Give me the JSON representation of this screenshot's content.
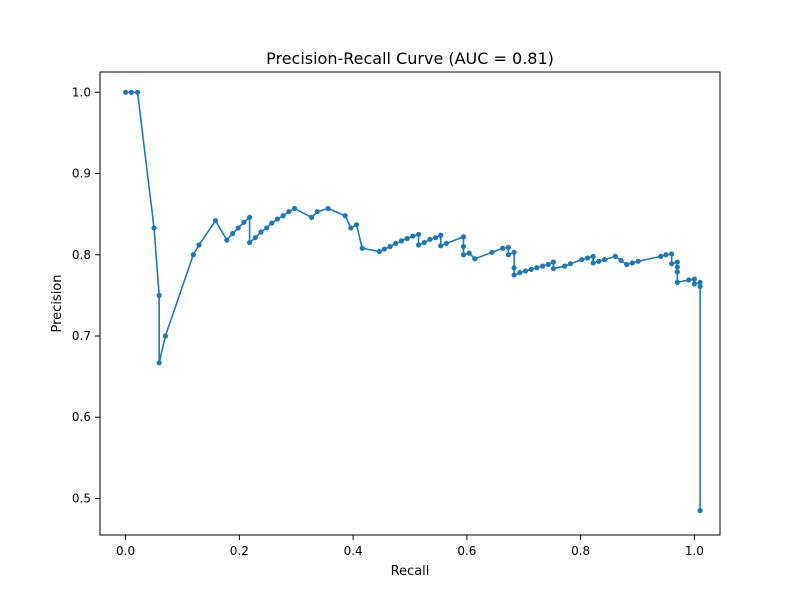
{
  "chart_data": {
    "type": "line",
    "title": "Precision-Recall Curve (AUC = 0.81)",
    "xlabel": "Recall",
    "ylabel": "Precision",
    "xlim": [
      -0.045,
      1.045
    ],
    "ylim": [
      0.455,
      1.025
    ],
    "x_ticks": [
      0.0,
      0.2,
      0.4,
      0.6,
      0.8,
      1.0
    ],
    "x_tick_labels": [
      "0.0",
      "0.2",
      "0.4",
      "0.6",
      "0.8",
      "1.0"
    ],
    "y_ticks": [
      0.5,
      0.6,
      0.7,
      0.8,
      0.9,
      1.0
    ],
    "y_tick_labels": [
      "0.5",
      "0.6",
      "0.7",
      "0.8",
      "0.9",
      "1.0"
    ],
    "grid": false,
    "line_color": "#1f77b4",
    "marker": "circle",
    "series": [
      {
        "x": [
          0.0,
          0.01,
          0.021,
          0.05,
          0.059,
          0.059,
          0.07,
          0.119,
          0.129,
          0.158,
          0.178,
          0.188,
          0.198,
          0.208,
          0.218,
          0.218,
          0.228,
          0.238,
          0.248,
          0.257,
          0.267,
          0.277,
          0.287,
          0.297,
          0.327,
          0.337,
          0.356,
          0.386,
          0.396,
          0.406,
          0.416,
          0.446,
          0.455,
          0.465,
          0.475,
          0.485,
          0.495,
          0.505,
          0.515,
          0.515,
          0.525,
          0.535,
          0.545,
          0.554,
          0.554,
          0.564,
          0.594,
          0.594,
          0.594,
          0.604,
          0.614,
          0.644,
          0.663,
          0.673,
          0.673,
          0.683,
          0.683,
          0.683,
          0.693,
          0.703,
          0.713,
          0.723,
          0.733,
          0.743,
          0.752,
          0.752,
          0.772,
          0.782,
          0.802,
          0.812,
          0.822,
          0.822,
          0.832,
          0.842,
          0.861,
          0.871,
          0.881,
          0.891,
          0.901,
          0.941,
          0.95,
          0.96,
          0.96,
          0.97,
          0.97,
          0.97,
          0.97,
          0.99,
          1.0,
          1.0,
          1.01,
          1.01,
          1.01
        ],
        "y": [
          1.0,
          1.0,
          1.0,
          0.833,
          0.75,
          0.667,
          0.7,
          0.8,
          0.812,
          0.842,
          0.818,
          0.826,
          0.833,
          0.84,
          0.846,
          0.815,
          0.821,
          0.828,
          0.833,
          0.839,
          0.844,
          0.848,
          0.853,
          0.857,
          0.846,
          0.853,
          0.857,
          0.848,
          0.833,
          0.837,
          0.808,
          0.804,
          0.807,
          0.81,
          0.814,
          0.817,
          0.82,
          0.823,
          0.825,
          0.812,
          0.815,
          0.819,
          0.821,
          0.824,
          0.811,
          0.814,
          0.822,
          0.81,
          0.8,
          0.802,
          0.795,
          0.803,
          0.808,
          0.809,
          0.8,
          0.803,
          0.784,
          0.775,
          0.778,
          0.78,
          0.782,
          0.784,
          0.786,
          0.788,
          0.791,
          0.783,
          0.786,
          0.789,
          0.794,
          0.796,
          0.798,
          0.79,
          0.792,
          0.794,
          0.798,
          0.793,
          0.788,
          0.79,
          0.792,
          0.798,
          0.8,
          0.801,
          0.789,
          0.791,
          0.785,
          0.779,
          0.766,
          0.769,
          0.77,
          0.764,
          0.766,
          0.761,
          0.485
        ]
      }
    ]
  }
}
